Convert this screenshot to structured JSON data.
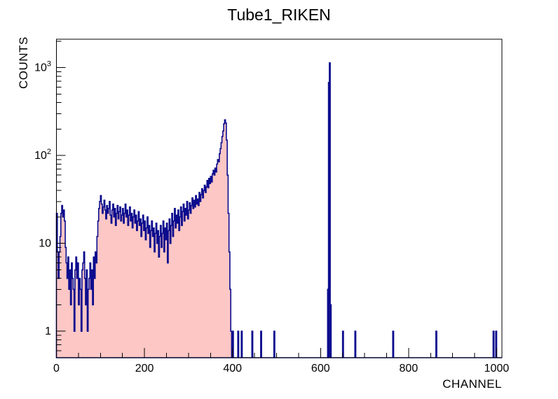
{
  "chart_data": {
    "type": "histogram",
    "title": "Tube1_RIKEN",
    "xlabel": "CHANNEL",
    "ylabel": "COUNTS",
    "x_axis_range": [
      0,
      1012
    ],
    "y_axis_range_log": [
      0.5,
      2000
    ],
    "y_scale": "log",
    "bin_width": 2,
    "bins_start_channel": 0,
    "bin_counts": [
      22,
      8,
      4,
      8,
      12,
      22,
      27,
      20,
      24,
      18,
      9,
      6,
      4,
      7,
      3,
      5,
      2,
      6,
      4,
      3,
      1,
      5,
      7,
      4,
      6,
      2,
      4,
      3,
      1,
      5,
      6,
      8,
      4,
      2,
      5,
      1,
      3,
      4,
      6,
      3,
      5,
      2,
      7,
      4,
      8,
      6,
      12,
      18,
      25,
      30,
      35,
      28,
      22,
      26,
      31,
      24,
      19,
      27,
      22,
      25,
      30,
      21,
      17,
      24,
      28,
      20,
      25,
      16,
      22,
      27,
      19,
      23,
      26,
      18,
      21,
      25,
      17,
      22,
      28,
      20,
      24,
      16,
      21,
      26,
      18,
      22,
      15,
      20,
      24,
      17,
      21,
      14,
      18,
      23,
      16,
      19,
      12,
      17,
      21,
      14,
      18,
      11,
      15,
      20,
      13,
      16,
      9,
      14,
      18,
      12,
      15,
      8,
      13,
      17,
      10,
      14,
      7,
      12,
      16,
      9,
      13,
      18,
      8,
      15,
      11,
      17,
      6,
      14,
      19,
      10,
      16,
      22,
      12,
      18,
      25,
      15,
      21,
      17,
      24,
      14,
      20,
      26,
      16,
      23,
      28,
      18,
      25,
      21,
      30,
      19,
      24,
      29,
      22,
      27,
      33,
      25,
      31,
      26,
      35,
      28,
      32,
      27,
      38,
      30,
      36,
      42,
      33,
      40,
      46,
      38,
      44,
      52,
      43,
      55,
      48,
      58,
      50,
      62,
      68,
      60,
      72,
      65,
      80,
      90,
      85,
      105,
      120,
      140,
      165,
      190,
      230,
      255,
      235,
      150,
      60,
      22,
      8,
      3,
      1,
      0
    ],
    "sparse_spikes": {
      "400": 1,
      "412": 1,
      "420": 1,
      "444": 1,
      "464": 1,
      "494": 1,
      "616": 3,
      "618": 680,
      "620": 1135,
      "622": 2,
      "650": 1,
      "678": 1,
      "764": 1,
      "862": 1,
      "992": 1,
      "998": 1
    },
    "x_major_ticks": [
      0,
      200,
      400,
      600,
      800,
      1000
    ],
    "x_minor_step": 50,
    "y_major_ticks": [
      {
        "value": 1,
        "mantissa": "1",
        "exponent": ""
      },
      {
        "value": 10,
        "mantissa": "10",
        "exponent": ""
      },
      {
        "value": 100,
        "mantissa": "10",
        "exponent": "2"
      },
      {
        "value": 1000,
        "mantissa": "10",
        "exponent": "3"
      }
    ],
    "legend": "none",
    "grid": "off",
    "colors": {
      "line": "#0c0c8e",
      "fill": "#fcc7c5",
      "frame": "#000000",
      "text": "#000000",
      "background": "#ffffff"
    }
  }
}
